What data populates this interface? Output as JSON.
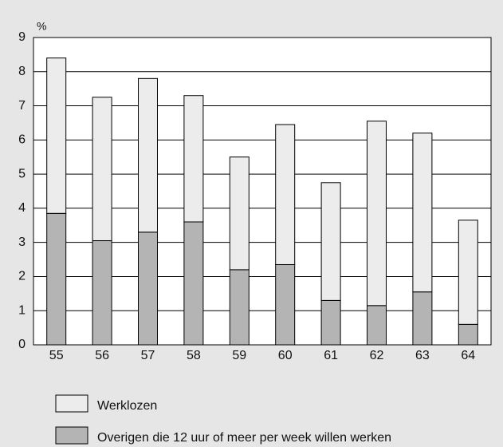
{
  "chart_data": {
    "type": "stacked_bar",
    "y_unit": "%",
    "categories": [
      "55",
      "56",
      "57",
      "58",
      "59",
      "60",
      "61",
      "62",
      "63",
      "64"
    ],
    "series": [
      {
        "name": "Overigen die 12 uur of meer per week willen werken",
        "color": "#b4b4b4",
        "values": [
          3.85,
          3.05,
          3.3,
          3.6,
          2.2,
          2.35,
          1.3,
          1.15,
          1.55,
          0.6
        ]
      },
      {
        "name": "Werklozen",
        "color": "#ececec",
        "values": [
          4.55,
          4.2,
          4.5,
          3.7,
          3.3,
          4.1,
          3.45,
          5.4,
          4.65,
          3.05
        ]
      }
    ],
    "ylim": [
      0,
      9
    ],
    "yticks": [
      0,
      1,
      2,
      3,
      4,
      5,
      6,
      7,
      8,
      9
    ],
    "grid": true
  }
}
